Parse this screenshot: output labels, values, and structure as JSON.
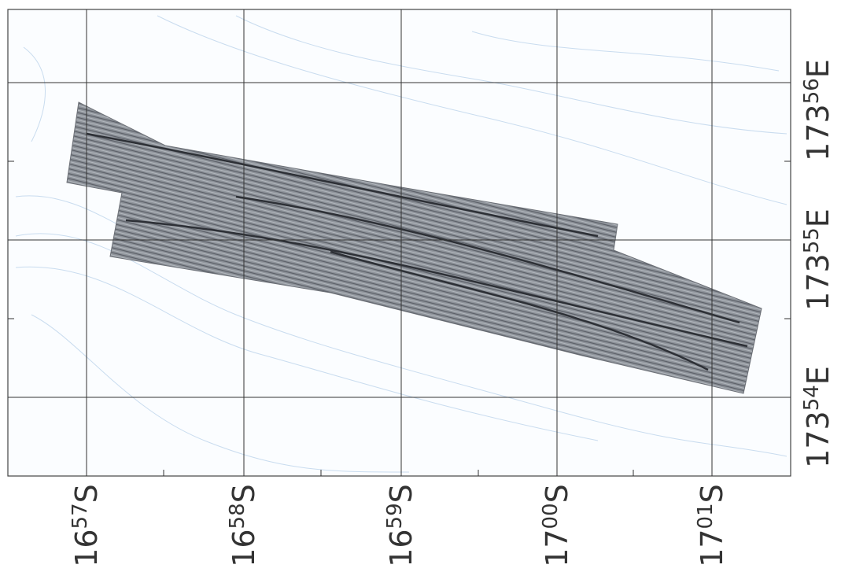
{
  "map": {
    "latitude_labels": [
      {
        "deg": "16",
        "min": "57",
        "hemi": "S"
      },
      {
        "deg": "16",
        "min": "58",
        "hemi": "S"
      },
      {
        "deg": "16",
        "min": "59",
        "hemi": "S"
      },
      {
        "deg": "17",
        "min": "00",
        "hemi": "S"
      },
      {
        "deg": "17",
        "min": "01",
        "hemi": "S"
      }
    ],
    "longitude_labels": [
      {
        "deg": "173",
        "min": "56",
        "hemi": "E"
      },
      {
        "deg": "173",
        "min": "55",
        "hemi": "E"
      },
      {
        "deg": "173",
        "min": "54",
        "hemi": "E"
      }
    ]
  }
}
